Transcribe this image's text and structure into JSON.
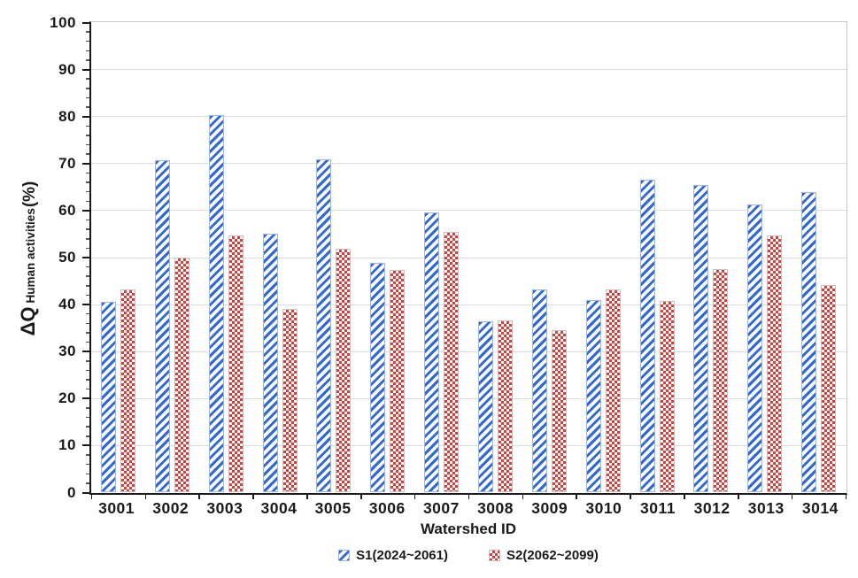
{
  "chart_data": {
    "type": "bar",
    "title": "",
    "xlabel": "Watershed ID",
    "ylabel": {
      "main": "ΔQ",
      "sub": "Human activities",
      "unit": "(%)"
    },
    "ylim": [
      0,
      100
    ],
    "ytick_step": 10,
    "yminor_step": 2,
    "grid": "horizontal",
    "legend_position": "bottom",
    "categories": [
      "3001",
      "3002",
      "3003",
      "3004",
      "3005",
      "3006",
      "3007",
      "3008",
      "3009",
      "3010",
      "3011",
      "3012",
      "3013",
      "3014"
    ],
    "series": [
      {
        "name": "S1(2024~2061)",
        "pattern": "diagonal-hatch",
        "color": "#2e68d9",
        "border_color": "#9db8e8",
        "values": [
          40.5,
          70.7,
          80.2,
          55.0,
          70.8,
          48.7,
          59.5,
          36.3,
          43.1,
          40.8,
          66.5,
          65.4,
          61.3,
          63.9
        ]
      },
      {
        "name": "S2(2062~2099)",
        "pattern": "checkerboard",
        "color": "#e33a36",
        "border_color": "#c2c2c2",
        "values": [
          43.2,
          49.9,
          54.6,
          39.0,
          51.8,
          47.2,
          55.3,
          36.6,
          34.5,
          43.1,
          40.7,
          47.4,
          54.7,
          44.1
        ]
      }
    ],
    "axis_color": "#1a1a1a",
    "gridline_color": "#dcdcdc",
    "frame_color": "#c9c9c9"
  }
}
